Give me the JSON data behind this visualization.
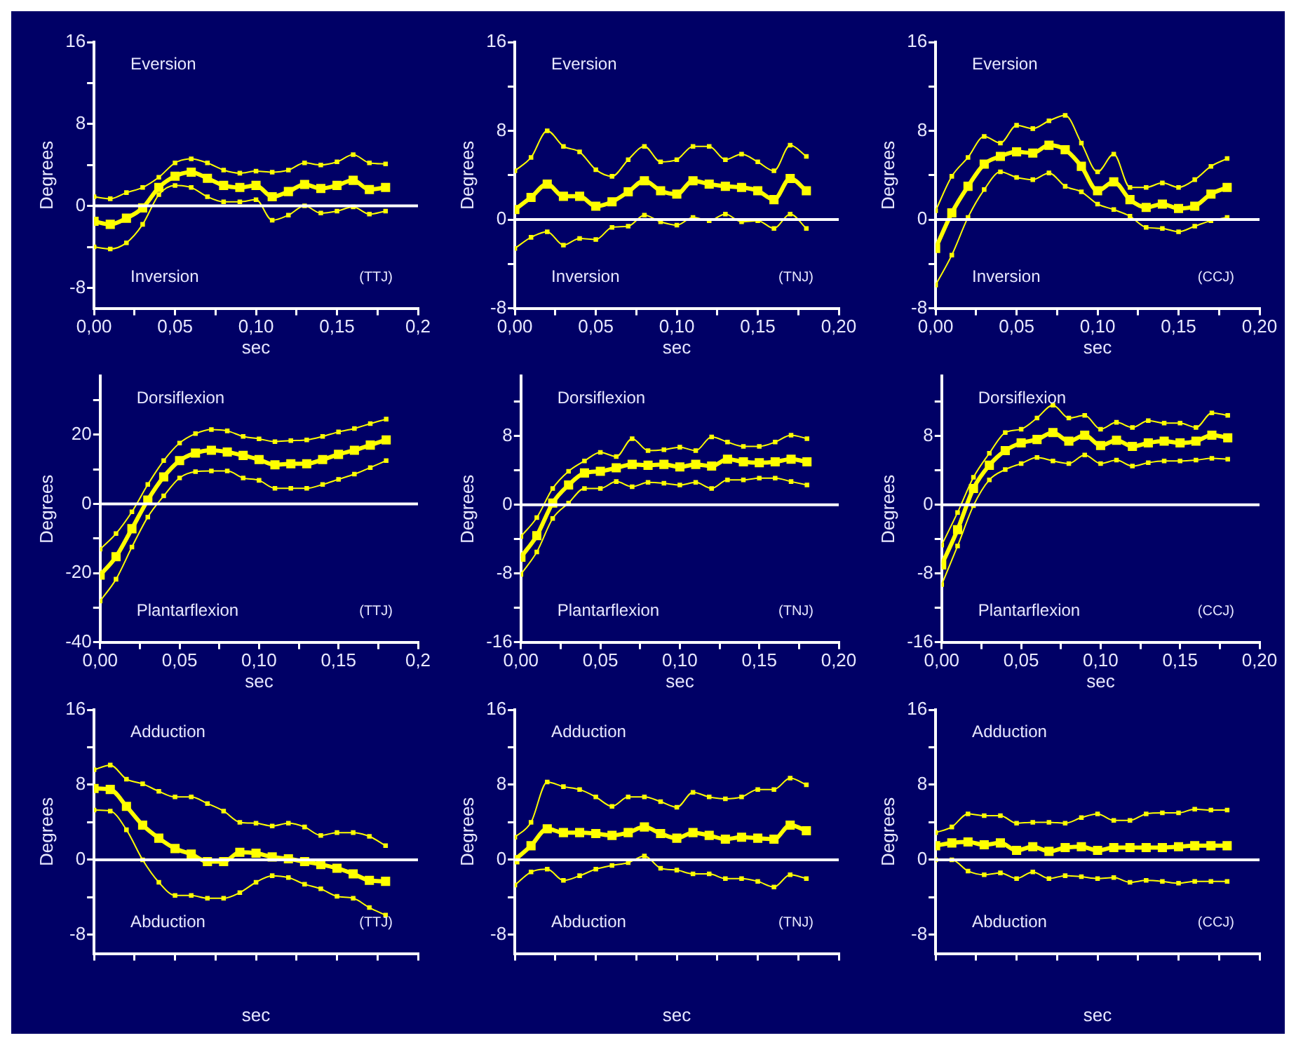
{
  "chart_data": [
    {
      "type": "line",
      "xlabel": "sec",
      "ylabel": "Degrees",
      "annotations": [
        "Eversion",
        "Inversion",
        "(TTJ)"
      ],
      "marker": "square",
      "xlim": [
        0,
        0.2
      ],
      "ylim": [
        -10,
        16
      ],
      "xticks": [
        {
          "value": 0,
          "label": "0,00"
        },
        {
          "value": 0.025,
          "label": null
        },
        {
          "value": 0.05,
          "label": "0,05"
        },
        {
          "value": 0.075,
          "label": null
        },
        {
          "value": 0.1,
          "label": "0,10"
        },
        {
          "value": 0.125,
          "label": null
        },
        {
          "value": 0.15,
          "label": "0,15"
        },
        {
          "value": 0.175,
          "label": null
        },
        {
          "value": 0.2,
          "label": "0,2"
        }
      ],
      "yticks": [
        {
          "value": -8,
          "label": "-8"
        },
        {
          "value": -4,
          "label": null
        },
        {
          "value": 0,
          "label": "0"
        },
        {
          "value": 4,
          "label": null
        },
        {
          "value": 8,
          "label": "8"
        },
        {
          "value": 12,
          "label": null
        },
        {
          "value": 16,
          "label": "16"
        }
      ],
      "ref_lines": [
        {
          "axis": "y",
          "value": 0,
          "color": "#ffffff"
        }
      ],
      "x": [
        0,
        0.01,
        0.02,
        0.03,
        0.04,
        0.05,
        0.06,
        0.07,
        0.08,
        0.09,
        0.1,
        0.11,
        0.12,
        0.13,
        0.14,
        0.15,
        0.16,
        0.17,
        0.18
      ],
      "series": [
        {
          "color": "#ffff00",
          "values": [
            0.9,
            0.7,
            1.3,
            1.8,
            2.8,
            4.2,
            4.6,
            4.2,
            3.5,
            3.2,
            3.4,
            3.3,
            3.5,
            4.2,
            4.0,
            4.3,
            5.0,
            4.2,
            4.1
          ]
        },
        {
          "color": "#ffff00",
          "values": [
            -1.5,
            -1.8,
            -1.2,
            -0.2,
            1.8,
            2.9,
            3.3,
            2.7,
            2.0,
            1.8,
            2.0,
            0.9,
            1.4,
            2.1,
            1.7,
            2.0,
            2.5,
            1.6,
            1.8
          ]
        },
        {
          "color": "#ffff00",
          "values": [
            -4.0,
            -4.2,
            -3.6,
            -1.8,
            1.1,
            2.0,
            1.8,
            0.9,
            0.4,
            0.4,
            0.6,
            -1.4,
            -0.9,
            0,
            -0.7,
            -0.5,
            -0.1,
            -0.8,
            -0.5
          ]
        }
      ]
    },
    {
      "type": "line",
      "xlabel": "sec",
      "ylabel": "Degrees",
      "annotations": [
        "Eversion",
        "Inversion",
        "(TNJ)"
      ],
      "marker": "square",
      "xlim": [
        0,
        0.2
      ],
      "ylim": [
        -8,
        16
      ],
      "xticks": [
        {
          "value": 0,
          "label": "0,00"
        },
        {
          "value": 0.025,
          "label": null
        },
        {
          "value": 0.05,
          "label": "0,05"
        },
        {
          "value": 0.075,
          "label": null
        },
        {
          "value": 0.1,
          "label": "0,10"
        },
        {
          "value": 0.125,
          "label": null
        },
        {
          "value": 0.15,
          "label": "0,15"
        },
        {
          "value": 0.175,
          "label": null
        },
        {
          "value": 0.2,
          "label": "0,20"
        }
      ],
      "yticks": [
        {
          "value": -8,
          "label": "-8"
        },
        {
          "value": -4,
          "label": null
        },
        {
          "value": 0,
          "label": "0"
        },
        {
          "value": 4,
          "label": null
        },
        {
          "value": 8,
          "label": "8"
        },
        {
          "value": 12,
          "label": null
        },
        {
          "value": 16,
          "label": "16"
        }
      ],
      "ref_lines": [
        {
          "axis": "y",
          "value": 0,
          "color": "#ffffff"
        }
      ],
      "x": [
        0,
        0.01,
        0.02,
        0.03,
        0.04,
        0.05,
        0.06,
        0.07,
        0.08,
        0.09,
        0.1,
        0.11,
        0.12,
        0.13,
        0.14,
        0.15,
        0.16,
        0.17,
        0.18
      ],
      "series": [
        {
          "color": "#ffff00",
          "values": [
            4.4,
            5.6,
            8.0,
            6.6,
            6.1,
            4.5,
            3.9,
            5.4,
            6.6,
            5.2,
            5.4,
            6.6,
            6.6,
            5.4,
            5.9,
            5.2,
            4.4,
            6.7,
            5.7
          ]
        },
        {
          "color": "#ffff00",
          "values": [
            0.9,
            2.0,
            3.2,
            2.1,
            2.1,
            1.2,
            1.6,
            2.5,
            3.5,
            2.6,
            2.3,
            3.5,
            3.2,
            3.0,
            2.9,
            2.6,
            1.8,
            3.7,
            2.6
          ]
        },
        {
          "color": "#ffff00",
          "values": [
            -2.6,
            -1.6,
            -1.1,
            -2.3,
            -1.7,
            -1.8,
            -0.7,
            -0.6,
            0.4,
            -0.2,
            -0.5,
            0.2,
            -0.1,
            0.5,
            -0.2,
            -0.1,
            -0.8,
            0.5,
            -0.8
          ]
        }
      ]
    },
    {
      "type": "line",
      "xlabel": "sec",
      "ylabel": "Degrees",
      "annotations": [
        "Eversion",
        "Inversion",
        "(CCJ)"
      ],
      "marker": "square",
      "xlim": [
        0,
        0.2
      ],
      "ylim": [
        -8,
        16
      ],
      "xticks": [
        {
          "value": 0,
          "label": "0,00"
        },
        {
          "value": 0.025,
          "label": null
        },
        {
          "value": 0.05,
          "label": "0,05"
        },
        {
          "value": 0.075,
          "label": null
        },
        {
          "value": 0.1,
          "label": "0,10"
        },
        {
          "value": 0.125,
          "label": null
        },
        {
          "value": 0.15,
          "label": "0,15"
        },
        {
          "value": 0.175,
          "label": null
        },
        {
          "value": 0.2,
          "label": "0,20"
        }
      ],
      "yticks": [
        {
          "value": -8,
          "label": "-8"
        },
        {
          "value": -4,
          "label": null
        },
        {
          "value": 0,
          "label": "0"
        },
        {
          "value": 4,
          "label": null
        },
        {
          "value": 8,
          "label": "8"
        },
        {
          "value": 12,
          "label": null
        },
        {
          "value": 16,
          "label": "16"
        }
      ],
      "ref_lines": [
        {
          "axis": "y",
          "value": 0,
          "color": "#ffffff"
        }
      ],
      "x": [
        0,
        0.01,
        0.02,
        0.03,
        0.04,
        0.05,
        0.06,
        0.07,
        0.08,
        0.09,
        0.1,
        0.11,
        0.12,
        0.13,
        0.14,
        0.15,
        0.16,
        0.17,
        0.18
      ],
      "series": [
        {
          "color": "#ffff00",
          "values": [
            0.8,
            3.9,
            5.6,
            7.5,
            6.9,
            8.5,
            8.2,
            8.9,
            9.4,
            6.9,
            4.3,
            5.9,
            2.9,
            2.9,
            3.3,
            2.9,
            3.6,
            4.8,
            5.5
          ]
        },
        {
          "color": "#ffff00",
          "values": [
            -2.6,
            0.6,
            3.0,
            5.0,
            5.7,
            6.1,
            6.0,
            6.7,
            6.3,
            4.8,
            2.6,
            3.4,
            1.8,
            1.1,
            1.4,
            1.0,
            1.2,
            2.3,
            2.9
          ]
        },
        {
          "color": "#ffff00",
          "values": [
            -5.9,
            -3.2,
            0.2,
            2.7,
            4.3,
            3.8,
            3.6,
            4.2,
            3.0,
            2.5,
            1.4,
            0.9,
            0.3,
            -0.7,
            -0.8,
            -1.1,
            -0.6,
            -0.1,
            0.2
          ]
        }
      ]
    },
    {
      "type": "line",
      "xlabel": "sec",
      "ylabel": "Degrees",
      "annotations": [
        "Dorsiflexion",
        "Plantarflexion",
        "(TTJ)"
      ],
      "marker": "square",
      "xlim": [
        0,
        0.2
      ],
      "ylim": [
        -40,
        37
      ],
      "xticks": [
        {
          "value": 0,
          "label": "0,00"
        },
        {
          "value": 0.025,
          "label": null
        },
        {
          "value": 0.05,
          "label": "0,05"
        },
        {
          "value": 0.075,
          "label": null
        },
        {
          "value": 0.1,
          "label": "0,10"
        },
        {
          "value": 0.125,
          "label": null
        },
        {
          "value": 0.15,
          "label": "0,15"
        },
        {
          "value": 0.175,
          "label": null
        },
        {
          "value": 0.2,
          "label": "0,2"
        }
      ],
      "yticks": [
        {
          "value": -40,
          "label": "-40"
        },
        {
          "value": -30,
          "label": null
        },
        {
          "value": -20,
          "label": "-20"
        },
        {
          "value": -10,
          "label": null
        },
        {
          "value": 0,
          "label": "0"
        },
        {
          "value": 10,
          "label": null
        },
        {
          "value": 20,
          "label": "20"
        },
        {
          "value": 30,
          "label": null
        }
      ],
      "ref_lines": [
        {
          "axis": "y",
          "value": 0,
          "color": "#ffffff"
        }
      ],
      "x": [
        0,
        0.01,
        0.02,
        0.03,
        0.04,
        0.05,
        0.06,
        0.07,
        0.08,
        0.09,
        0.1,
        0.11,
        0.12,
        0.13,
        0.14,
        0.15,
        0.16,
        0.17,
        0.18
      ],
      "series": [
        {
          "color": "#ffff00",
          "values": [
            -13.1,
            -8.6,
            -2.3,
            5.6,
            12.5,
            17.6,
            20.3,
            21.5,
            21.1,
            19.5,
            18.8,
            18.0,
            18.3,
            18.5,
            19.5,
            20.8,
            21.8,
            23.2,
            24.5
          ]
        },
        {
          "color": "#ffff00",
          "values": [
            -20.6,
            -15.3,
            -7.2,
            1.1,
            7.8,
            12.5,
            14.7,
            15.5,
            15.0,
            14.0,
            12.8,
            11.3,
            11.6,
            11.6,
            12.8,
            14.3,
            15.5,
            17.0,
            18.5
          ]
        },
        {
          "color": "#ffff00",
          "values": [
            -28.1,
            -21.8,
            -12.5,
            -3.8,
            2.3,
            7.5,
            9.3,
            9.5,
            9.5,
            7.5,
            6.8,
            4.5,
            4.5,
            4.5,
            5.6,
            7.1,
            8.6,
            10.5,
            12.5
          ]
        }
      ]
    },
    {
      "type": "line",
      "xlabel": "sec",
      "ylabel": "Degrees",
      "annotations": [
        "Dorsiflexion",
        "Plantarflexion",
        "(TNJ)"
      ],
      "marker": "square",
      "xlim": [
        0,
        0.2
      ],
      "ylim": [
        -16,
        15
      ],
      "xticks": [
        {
          "value": 0,
          "label": "0,00"
        },
        {
          "value": 0.025,
          "label": null
        },
        {
          "value": 0.05,
          "label": "0,05"
        },
        {
          "value": 0.075,
          "label": null
        },
        {
          "value": 0.1,
          "label": "0,10"
        },
        {
          "value": 0.125,
          "label": null
        },
        {
          "value": 0.15,
          "label": "0,15"
        },
        {
          "value": 0.175,
          "label": null
        },
        {
          "value": 0.2,
          "label": "0,20"
        }
      ],
      "yticks": [
        {
          "value": -16,
          "label": "-16"
        },
        {
          "value": -12,
          "label": null
        },
        {
          "value": -8,
          "label": "-8"
        },
        {
          "value": -4,
          "label": null
        },
        {
          "value": 0,
          "label": "0"
        },
        {
          "value": 4,
          "label": null
        },
        {
          "value": 8,
          "label": "8"
        },
        {
          "value": 12,
          "label": null
        }
      ],
      "ref_lines": [
        {
          "axis": "y",
          "value": 0,
          "color": "#ffffff"
        }
      ],
      "x": [
        0,
        0.01,
        0.02,
        0.03,
        0.04,
        0.05,
        0.06,
        0.07,
        0.08,
        0.09,
        0.1,
        0.11,
        0.12,
        0.13,
        0.14,
        0.15,
        0.16,
        0.17,
        0.18
      ],
      "series": [
        {
          "color": "#ffff00",
          "values": [
            -3.7,
            -1.5,
            1.9,
            3.9,
            5.1,
            6.1,
            5.6,
            7.7,
            6.3,
            6.4,
            6.7,
            6.3,
            7.9,
            7.3,
            6.8,
            6.8,
            7.3,
            8.1,
            7.7
          ]
        },
        {
          "color": "#ffff00",
          "values": [
            -6.1,
            -3.6,
            0.2,
            2.3,
            3.7,
            3.9,
            4.3,
            4.7,
            4.6,
            4.7,
            4.4,
            4.7,
            4.5,
            5.3,
            5.0,
            4.9,
            5.0,
            5.3,
            5.0
          ]
        },
        {
          "color": "#ffff00",
          "values": [
            -8.1,
            -5.5,
            -1.6,
            0.2,
            1.9,
            1.9,
            2.7,
            2.1,
            2.6,
            2.5,
            2.3,
            2.6,
            1.9,
            2.9,
            2.9,
            3.1,
            3.1,
            2.7,
            2.3
          ]
        }
      ]
    },
    {
      "type": "line",
      "xlabel": "sec",
      "ylabel": "Degrees",
      "annotations": [
        "Dorsiflexion",
        "Plantarflexion",
        "(CCJ)"
      ],
      "marker": "square",
      "xlim": [
        0,
        0.2
      ],
      "ylim": [
        -16,
        15
      ],
      "xticks": [
        {
          "value": 0,
          "label": "0,00"
        },
        {
          "value": 0.025,
          "label": null
        },
        {
          "value": 0.05,
          "label": "0,05"
        },
        {
          "value": 0.075,
          "label": null
        },
        {
          "value": 0.1,
          "label": "0,10"
        },
        {
          "value": 0.125,
          "label": null
        },
        {
          "value": 0.15,
          "label": "0,15"
        },
        {
          "value": 0.175,
          "label": null
        },
        {
          "value": 0.2,
          "label": "0,20"
        }
      ],
      "yticks": [
        {
          "value": -16,
          "label": "-16"
        },
        {
          "value": -12,
          "label": null
        },
        {
          "value": -8,
          "label": "-8"
        },
        {
          "value": -4,
          "label": null
        },
        {
          "value": 0,
          "label": "0"
        },
        {
          "value": 4,
          "label": null
        },
        {
          "value": 8,
          "label": "8"
        },
        {
          "value": 12,
          "label": null
        }
      ],
      "ref_lines": [
        {
          "axis": "y",
          "value": 0,
          "color": "#ffffff"
        }
      ],
      "x": [
        0,
        0.01,
        0.02,
        0.03,
        0.04,
        0.05,
        0.06,
        0.07,
        0.08,
        0.09,
        0.1,
        0.11,
        0.12,
        0.13,
        0.14,
        0.15,
        0.16,
        0.17,
        0.18
      ],
      "series": [
        {
          "color": "#ffff00",
          "values": [
            -4.7,
            -0.9,
            3.2,
            6.0,
            8.4,
            8.8,
            10.1,
            11.6,
            10.1,
            10.4,
            8.8,
            9.6,
            9.0,
            9.8,
            9.5,
            9.5,
            9.0,
            10.7,
            10.4
          ]
        },
        {
          "color": "#ffff00",
          "values": [
            -7.0,
            -2.9,
            1.9,
            4.6,
            6.3,
            7.2,
            7.6,
            8.4,
            7.4,
            8.1,
            6.9,
            7.5,
            6.8,
            7.2,
            7.4,
            7.2,
            7.4,
            8.1,
            7.8
          ]
        },
        {
          "color": "#ffff00",
          "values": [
            -9.3,
            -4.8,
            -0.1,
            2.9,
            4.1,
            4.8,
            5.5,
            5.1,
            4.8,
            5.8,
            4.8,
            5.2,
            4.5,
            4.9,
            5.1,
            5.1,
            5.2,
            5.4,
            5.3
          ]
        }
      ]
    },
    {
      "type": "line",
      "xlabel": "sec",
      "ylabel": "Degrees",
      "annotations": [
        "Adduction",
        "Abduction",
        "(TTJ)"
      ],
      "marker": "square",
      "xlim": [
        0,
        0.2
      ],
      "ylim": [
        -10,
        16
      ],
      "tick_labels": "y",
      "xticks": [
        {
          "value": 0,
          "label": null
        },
        {
          "value": 0.025,
          "label": null
        },
        {
          "value": 0.05,
          "label": null
        },
        {
          "value": 0.075,
          "label": null
        },
        {
          "value": 0.1,
          "label": null
        },
        {
          "value": 0.125,
          "label": null
        },
        {
          "value": 0.15,
          "label": null
        },
        {
          "value": 0.175,
          "label": null
        },
        {
          "value": 0.2,
          "label": null
        }
      ],
      "yticks": [
        {
          "value": -8,
          "label": "-8"
        },
        {
          "value": -4,
          "label": null
        },
        {
          "value": 0,
          "label": "0"
        },
        {
          "value": 4,
          "label": null
        },
        {
          "value": 8,
          "label": "8"
        },
        {
          "value": 12,
          "label": null
        },
        {
          "value": 16,
          "label": "16"
        }
      ],
      "ref_lines": [
        {
          "axis": "y",
          "value": 0,
          "color": "#ffffff"
        }
      ],
      "x": [
        0,
        0.01,
        0.02,
        0.03,
        0.04,
        0.05,
        0.06,
        0.07,
        0.08,
        0.09,
        0.1,
        0.11,
        0.12,
        0.13,
        0.14,
        0.15,
        0.16,
        0.17,
        0.18
      ],
      "series": [
        {
          "color": "#ffff00",
          "values": [
            9.6,
            10.1,
            8.6,
            8.1,
            7.3,
            6.7,
            6.7,
            6.0,
            5.2,
            4.0,
            3.9,
            3.6,
            3.9,
            3.5,
            2.6,
            2.9,
            2.9,
            2.5,
            1.5
          ]
        },
        {
          "color": "#ffff00",
          "values": [
            7.6,
            7.5,
            5.7,
            3.7,
            2.3,
            1.2,
            0.6,
            -0.2,
            -0.2,
            0.8,
            0.7,
            0.3,
            0.1,
            -0.2,
            -0.5,
            -0.9,
            -1.5,
            -2.2,
            -2.3
          ]
        },
        {
          "color": "#ffff00",
          "values": [
            5.3,
            5.2,
            3.2,
            0.0,
            -2.4,
            -3.8,
            -3.8,
            -4.1,
            -4.1,
            -3.5,
            -2.4,
            -1.7,
            -1.9,
            -2.6,
            -3.1,
            -3.9,
            -4.1,
            -5.1,
            -5.9
          ]
        }
      ]
    },
    {
      "type": "line",
      "xlabel": "sec",
      "ylabel": "Degrees",
      "annotations": [
        "Adduction",
        "Abduction",
        "(TNJ)"
      ],
      "marker": "square",
      "xlim": [
        0,
        0.2
      ],
      "ylim": [
        -10,
        16
      ],
      "tick_labels": "y",
      "xticks": [
        {
          "value": 0,
          "label": null
        },
        {
          "value": 0.025,
          "label": null
        },
        {
          "value": 0.05,
          "label": null
        },
        {
          "value": 0.075,
          "label": null
        },
        {
          "value": 0.1,
          "label": null
        },
        {
          "value": 0.125,
          "label": null
        },
        {
          "value": 0.15,
          "label": null
        },
        {
          "value": 0.175,
          "label": null
        },
        {
          "value": 0.2,
          "label": null
        }
      ],
      "yticks": [
        {
          "value": -8,
          "label": "-8"
        },
        {
          "value": -4,
          "label": null
        },
        {
          "value": 0,
          "label": "0"
        },
        {
          "value": 4,
          "label": null
        },
        {
          "value": 8,
          "label": "8"
        },
        {
          "value": 12,
          "label": null
        },
        {
          "value": 16,
          "label": "16"
        }
      ],
      "ref_lines": [
        {
          "axis": "y",
          "value": 0,
          "color": "#ffffff"
        }
      ],
      "x": [
        0,
        0.01,
        0.02,
        0.03,
        0.04,
        0.05,
        0.06,
        0.07,
        0.08,
        0.09,
        0.1,
        0.11,
        0.12,
        0.13,
        0.14,
        0.15,
        0.16,
        0.17,
        0.18
      ],
      "series": [
        {
          "color": "#ffff00",
          "values": [
            2.4,
            4.0,
            8.3,
            7.8,
            7.5,
            6.7,
            5.7,
            6.7,
            6.7,
            6.2,
            5.6,
            7.2,
            6.7,
            6.5,
            6.7,
            7.5,
            7.5,
            8.7,
            8.0
          ]
        },
        {
          "color": "#ffff00",
          "values": [
            0.0,
            1.5,
            3.3,
            2.9,
            2.9,
            2.8,
            2.6,
            2.9,
            3.5,
            2.8,
            2.3,
            2.9,
            2.6,
            2.2,
            2.4,
            2.3,
            2.2,
            3.7,
            3.1
          ]
        },
        {
          "color": "#ffff00",
          "values": [
            -2.7,
            -1.3,
            -1.0,
            -2.2,
            -1.7,
            -1.0,
            -0.6,
            -0.3,
            0.4,
            -0.9,
            -1.1,
            -1.5,
            -1.5,
            -2.0,
            -2.0,
            -2.3,
            -2.9,
            -1.6,
            -2.0
          ]
        }
      ]
    },
    {
      "type": "line",
      "xlabel": "sec",
      "ylabel": "Degrees",
      "annotations": [
        "Adduction",
        "Abduction",
        "(CCJ)"
      ],
      "marker": "square",
      "xlim": [
        0,
        0.2
      ],
      "ylim": [
        -10,
        16
      ],
      "tick_labels": "y",
      "xticks": [
        {
          "value": 0,
          "label": null
        },
        {
          "value": 0.025,
          "label": null
        },
        {
          "value": 0.05,
          "label": null
        },
        {
          "value": 0.075,
          "label": null
        },
        {
          "value": 0.1,
          "label": null
        },
        {
          "value": 0.125,
          "label": null
        },
        {
          "value": 0.15,
          "label": null
        },
        {
          "value": 0.175,
          "label": null
        },
        {
          "value": 0.2,
          "label": null
        }
      ],
      "yticks": [
        {
          "value": -8,
          "label": "-8"
        },
        {
          "value": -4,
          "label": null
        },
        {
          "value": 0,
          "label": "0"
        },
        {
          "value": 4,
          "label": null
        },
        {
          "value": 8,
          "label": "8"
        },
        {
          "value": 12,
          "label": null
        },
        {
          "value": 16,
          "label": "16"
        }
      ],
      "ref_lines": [
        {
          "axis": "y",
          "value": 0,
          "color": "#ffffff"
        }
      ],
      "x": [
        0,
        0.01,
        0.02,
        0.03,
        0.04,
        0.05,
        0.06,
        0.07,
        0.08,
        0.09,
        0.1,
        0.11,
        0.12,
        0.13,
        0.14,
        0.15,
        0.16,
        0.17,
        0.18
      ],
      "series": [
        {
          "color": "#ffff00",
          "values": [
            2.9,
            3.5,
            4.9,
            4.7,
            4.7,
            3.9,
            4.0,
            4.0,
            3.9,
            4.5,
            4.9,
            4.2,
            4.2,
            4.9,
            5.0,
            5.0,
            5.4,
            5.3,
            5.3
          ]
        },
        {
          "color": "#ffff00",
          "values": [
            1.5,
            1.8,
            1.9,
            1.6,
            1.8,
            1.0,
            1.4,
            0.9,
            1.3,
            1.4,
            1.0,
            1.3,
            1.3,
            1.3,
            1.3,
            1.4,
            1.5,
            1.5,
            1.5
          ]
        },
        {
          "color": "#ffff00",
          "values": [
            0.0,
            0.0,
            -1.2,
            -1.6,
            -1.4,
            -2.0,
            -1.3,
            -2.0,
            -1.7,
            -1.8,
            -2.0,
            -1.9,
            -2.4,
            -2.2,
            -2.3,
            -2.5,
            -2.3,
            -2.3,
            -2.3
          ]
        }
      ]
    }
  ]
}
